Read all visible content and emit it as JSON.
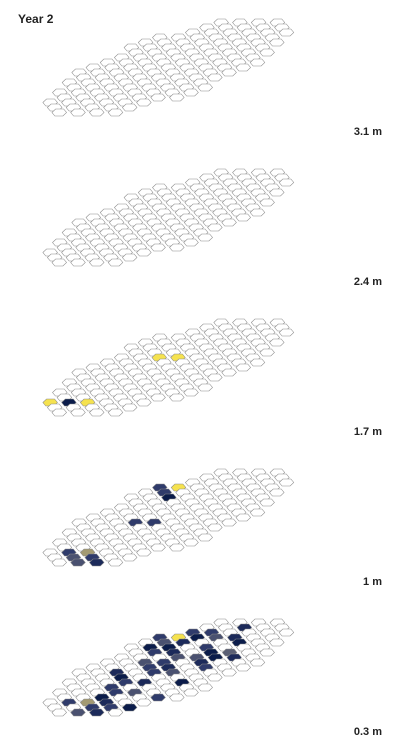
{
  "title": "Year 2",
  "chart_data": {
    "type": "heatmap",
    "layout": "stacked isometric hexagonal grids, one per depth level",
    "grid": {
      "rows": 11,
      "cols": 17,
      "empty_color": "#ffffff"
    },
    "value_colors": {
      "low": "#0b1c4a",
      "high": "#f5e24f"
    },
    "levels": [
      {
        "label": "3.1 m",
        "cells": []
      },
      {
        "label": "2.4 m",
        "cells": []
      },
      {
        "label": "1.7 m",
        "cells": [
          {
            "row": 4,
            "col": 0,
            "color": "#f5e24f"
          },
          {
            "row": 6,
            "col": 2,
            "color": "#f5e24f"
          },
          {
            "row": 5,
            "col": 1,
            "color": "#0b1c4a"
          },
          {
            "row": 3,
            "col": 8,
            "color": "#f5e24f"
          },
          {
            "row": 4,
            "col": 9,
            "color": "#f5e24f"
          }
        ]
      },
      {
        "label": "1 m",
        "cells": [
          {
            "row": 5,
            "col": 1,
            "color": "#2f3b6b"
          },
          {
            "row": 6,
            "col": 2,
            "color": "#a39a72"
          },
          {
            "row": 7,
            "col": 2,
            "color": "#2f3b6b"
          },
          {
            "row": 6,
            "col": 1,
            "color": "#4a5170"
          },
          {
            "row": 7,
            "col": 1,
            "color": "#4a5170"
          },
          {
            "row": 8,
            "col": 2,
            "color": "#1c2a5a"
          },
          {
            "row": 7,
            "col": 0,
            "color": "#e8d75a"
          },
          {
            "row": 4,
            "col": 6,
            "color": "#2f3b6b"
          },
          {
            "row": 5,
            "col": 7,
            "color": "#2f3b6b"
          },
          {
            "row": 0,
            "col": 9,
            "color": "#2f3b6b"
          },
          {
            "row": 1,
            "col": 9,
            "color": "#2f3b6b"
          },
          {
            "row": 2,
            "col": 9,
            "color": "#0b1c4a"
          },
          {
            "row": 1,
            "col": 10,
            "color": "#f5e24f"
          }
        ]
      },
      {
        "label": "0.3 m",
        "cells": [
          {
            "row": 4,
            "col": 5,
            "color": "#0b1c4a"
          },
          {
            "row": 5,
            "col": 5,
            "color": "#2f3b6b"
          },
          {
            "row": 5,
            "col": 4,
            "color": "#2f3b6b"
          },
          {
            "row": 6,
            "col": 6,
            "color": "#1c2a5a"
          },
          {
            "row": 6,
            "col": 4,
            "color": "#2f3b6b"
          },
          {
            "row": 6,
            "col": 3,
            "color": "#0b1c4a"
          },
          {
            "row": 7,
            "col": 5,
            "color": "#4a5170"
          },
          {
            "row": 7,
            "col": 3,
            "color": "#1c2a5a"
          },
          {
            "row": 5,
            "col": 1,
            "color": "#2f3b6b"
          },
          {
            "row": 6,
            "col": 2,
            "color": "#a39a72"
          },
          {
            "row": 7,
            "col": 2,
            "color": "#2f3b6b"
          },
          {
            "row": 7,
            "col": 1,
            "color": "#4a5170"
          },
          {
            "row": 8,
            "col": 2,
            "color": "#1c2a5a"
          },
          {
            "row": 8,
            "col": 3,
            "color": "#2f3b6b"
          },
          {
            "row": 7,
            "col": 0,
            "color": "#e8d75a"
          },
          {
            "row": 8,
            "col": 1,
            "color": "#0b1c4a"
          },
          {
            "row": 2,
            "col": 9,
            "color": "#0b1c4a"
          },
          {
            "row": 3,
            "col": 9,
            "color": "#1c2a5a"
          },
          {
            "row": 4,
            "col": 9,
            "color": "#4a5170"
          },
          {
            "row": 4,
            "col": 8,
            "color": "#2f3b6b"
          },
          {
            "row": 5,
            "col": 8,
            "color": "#1c2a5a"
          },
          {
            "row": 5,
            "col": 7,
            "color": "#2f3b6b"
          },
          {
            "row": 3,
            "col": 7,
            "color": "#4a5170"
          },
          {
            "row": 4,
            "col": 7,
            "color": "#2f3b6b"
          },
          {
            "row": 6,
            "col": 8,
            "color": "#4a5170"
          },
          {
            "row": 6,
            "col": 10,
            "color": "#1c2a5a"
          },
          {
            "row": 7,
            "col": 10,
            "color": "#2f3b6b"
          },
          {
            "row": 6,
            "col": 11,
            "color": "#0b1c4a"
          },
          {
            "row": 5,
            "col": 10,
            "color": "#4a5170"
          },
          {
            "row": 5,
            "col": 11,
            "color": "#0b1c4a"
          },
          {
            "row": 4,
            "col": 11,
            "color": "#2f3b6b"
          },
          {
            "row": 7,
            "col": 12,
            "color": "#1c2a5a"
          },
          {
            "row": 6,
            "col": 12,
            "color": "#5a5f74"
          },
          {
            "row": 4,
            "col": 13,
            "color": "#1c2a5a"
          },
          {
            "row": 5,
            "col": 13,
            "color": "#0b1c4a"
          },
          {
            "row": 2,
            "col": 12,
            "color": "#2f3b6b"
          },
          {
            "row": 3,
            "col": 12,
            "color": "#4a5170"
          },
          {
            "row": 1,
            "col": 11,
            "color": "#2f3b6b"
          },
          {
            "row": 2,
            "col": 11,
            "color": "#0b1c4a"
          },
          {
            "row": 0,
            "col": 9,
            "color": "#2f3b6b"
          },
          {
            "row": 1,
            "col": 9,
            "color": "#4a5170"
          },
          {
            "row": 1,
            "col": 10,
            "color": "#f5e24f"
          },
          {
            "row": 0,
            "col": 10,
            "color": "#2f3b6b"
          },
          {
            "row": 2,
            "col": 10,
            "color": "#1c2a5a"
          },
          {
            "row": 1,
            "col": 8,
            "color": "#0b1c4a"
          },
          {
            "row": 2,
            "col": 8,
            "color": "#2f3b6b"
          },
          {
            "row": 0,
            "col": 12,
            "color": "#2f3b6b"
          },
          {
            "row": 3,
            "col": 14,
            "color": "#1c2a5a"
          },
          {
            "row": 9,
            "col": 4,
            "color": "#0b1c4a"
          },
          {
            "row": 9,
            "col": 6,
            "color": "#2f3b6b"
          },
          {
            "row": 3,
            "col": 5,
            "color": "#1c2a5a"
          },
          {
            "row": 8,
            "col": 8,
            "color": "#0b1c4a"
          }
        ]
      }
    ]
  }
}
